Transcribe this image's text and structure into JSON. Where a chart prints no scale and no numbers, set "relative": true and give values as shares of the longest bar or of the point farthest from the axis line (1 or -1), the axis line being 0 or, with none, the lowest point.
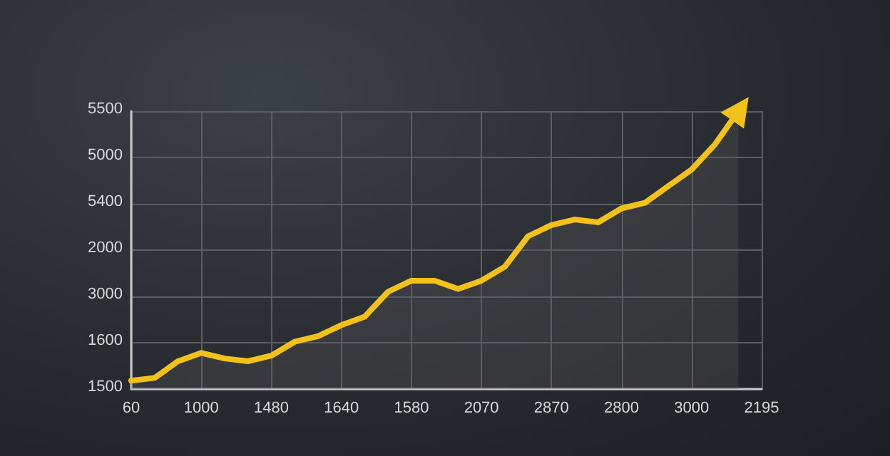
{
  "chart_data": {
    "type": "area",
    "relative": true,
    "categories": [
      "60",
      null,
      null,
      "1000",
      null,
      null,
      "1480",
      null,
      null,
      "1640",
      null,
      null,
      "1580",
      null,
      null,
      "2070",
      null,
      null,
      "2870",
      null,
      null,
      "2800",
      null,
      null,
      "3000",
      null,
      null,
      "2195"
    ],
    "series": [
      {
        "color": "#f2c21b",
        "values": [
          0.03,
          0.04,
          0.1,
          0.13,
          0.11,
          0.1,
          0.12,
          0.17,
          0.19,
          0.23,
          0.26,
          0.35,
          0.39,
          0.39,
          0.36,
          0.39,
          0.44,
          0.55,
          0.59,
          0.61,
          0.6,
          0.65,
          0.67,
          0.73,
          0.79,
          0.88,
          1,
          null
        ]
      }
    ],
    "annotations": [
      "1500",
      "1600",
      "3000",
      "2000",
      "5400",
      "5000",
      "5500"
    ],
    "grid": true,
    "marker": "none"
  }
}
